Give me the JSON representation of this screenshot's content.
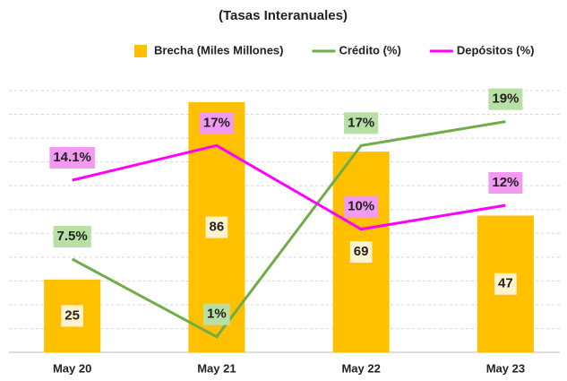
{
  "chart_data": {
    "type": "bar",
    "title": "(Tasas Interanuales)",
    "categories": [
      "May 20",
      "May 21",
      "May 22",
      "May 23"
    ],
    "ylim": [
      0,
      90
    ],
    "y2lim": [
      -0.3,
      21.6
    ],
    "series": [
      {
        "name": "Brecha (Miles Millones)",
        "type": "bar",
        "color": "#FFC000",
        "values": [
          25,
          86,
          69,
          47
        ]
      },
      {
        "name": "Crédito (%)",
        "type": "line",
        "axis": "y2",
        "color": "#70AD47",
        "values": [
          7.5,
          1,
          17,
          19
        ],
        "value_labels": [
          "7.5%",
          "1%",
          "17%",
          "19%"
        ]
      },
      {
        "name": "Depósitos (%)",
        "type": "line",
        "axis": "y2",
        "color": "#FF00FF",
        "values": [
          14.1,
          17,
          10,
          12
        ],
        "value_labels": [
          "14.1%",
          "17%",
          "10%",
          "12%"
        ]
      }
    ]
  }
}
